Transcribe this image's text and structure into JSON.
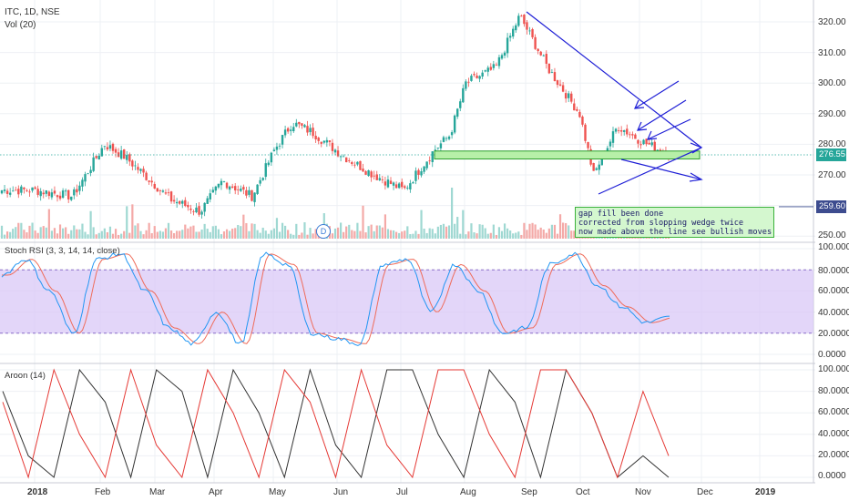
{
  "header": {
    "symbol": "ITC, 1D, NSE",
    "volume": "Vol (20)",
    "stoch_title": "Stoch RSI (3, 3, 14, 14, close)",
    "aroon_title": "Aroon (14)"
  },
  "price_axis": {
    "ticks": [
      "320.00",
      "310.00",
      "300.00",
      "290.00",
      "280.00",
      "270.00",
      "250.00"
    ],
    "last_price": "276.55",
    "support_price": "259.60",
    "last_price_color": "#26a69a",
    "support_color": "#3d4c8f"
  },
  "stoch_axis": {
    "ticks": [
      "100.0000",
      "80.0000",
      "60.0000",
      "40.0000",
      "20.0000",
      "0.0000"
    ]
  },
  "aroon_axis": {
    "ticks": [
      "100.0000",
      "80.0000",
      "60.0000",
      "40.0000",
      "20.0000",
      "0.0000"
    ]
  },
  "time_axis": {
    "labels": [
      "2018",
      "Feb",
      "Mar",
      "Apr",
      "May",
      "Jun",
      "Jul",
      "Aug",
      "Sep",
      "Oct",
      "Nov",
      "Dec",
      "2019"
    ]
  },
  "event_marker": "D",
  "annotation": {
    "lines": [
      "gap  fill been done",
      "corrected from slopping wedge  twice",
      "now made above the line see bullish moves"
    ]
  },
  "colors": {
    "up": "#26a69a",
    "down": "#ef5350",
    "stoch_k": "#2196f3",
    "stoch_d": "#ef6c5a",
    "aroon_up": "#e53935",
    "aroon_down": "#333333",
    "band": "#d9c8f7",
    "drawing": "#1f1fd6",
    "zone": "#b7f0a8"
  },
  "chart_data": [
    {
      "type": "candlestick",
      "title": "ITC, 1D, NSE",
      "ylim": [
        248,
        324
      ],
      "x": [
        "2018",
        "Feb",
        "Mar",
        "Apr",
        "May",
        "Jun",
        "Jul",
        "Aug",
        "Sep",
        "Oct",
        "Nov",
        "Dec",
        "2019"
      ],
      "price_path": [
        {
          "x": "2018-01-01",
          "close": 265
        },
        {
          "x": "2018-01-20",
          "close": 263
        },
        {
          "x": "2018-02-05",
          "close": 280
        },
        {
          "x": "2018-02-15",
          "close": 276
        },
        {
          "x": "2018-02-25",
          "close": 270
        },
        {
          "x": "2018-03-10",
          "close": 262
        },
        {
          "x": "2018-03-25",
          "close": 258
        },
        {
          "x": "2018-04-05",
          "close": 268
        },
        {
          "x": "2018-04-20",
          "close": 263
        },
        {
          "x": "2018-05-01",
          "close": 278
        },
        {
          "x": "2018-05-10",
          "close": 287
        },
        {
          "x": "2018-05-20",
          "close": 284
        },
        {
          "x": "2018-06-05",
          "close": 276
        },
        {
          "x": "2018-06-20",
          "close": 270
        },
        {
          "x": "2018-07-05",
          "close": 265
        },
        {
          "x": "2018-07-20",
          "close": 278
        },
        {
          "x": "2018-07-28",
          "close": 283
        },
        {
          "x": "2018-08-05",
          "close": 300
        },
        {
          "x": "2018-08-20",
          "close": 305
        },
        {
          "x": "2018-09-01",
          "close": 322
        },
        {
          "x": "2018-09-15",
          "close": 305
        },
        {
          "x": "2018-10-01",
          "close": 290
        },
        {
          "x": "2018-10-08",
          "close": 270
        },
        {
          "x": "2018-10-20",
          "close": 286
        },
        {
          "x": "2018-11-01",
          "close": 281
        },
        {
          "x": "2018-11-15",
          "close": 276.55
        }
      ],
      "levels": {
        "last": 276.55,
        "support": 259.6
      }
    },
    {
      "type": "line",
      "title": "Stoch RSI (3, 3, 14, 14, close)",
      "ylim": [
        0,
        100
      ],
      "bands": [
        20,
        80
      ],
      "series": [
        {
          "values": [
            75,
            90,
            60,
            20,
            90,
            95,
            60,
            25,
            10,
            40,
            10,
            95,
            85,
            20,
            15,
            10,
            85,
            90,
            40,
            85,
            60,
            20,
            25,
            85,
            95,
            65,
            45,
            30,
            35
          ]
        }
      ]
    },
    {
      "type": "line",
      "title": "Aroon (14)",
      "ylim": [
        0,
        100
      ],
      "series": [
        {
          "values": [
            70,
            0,
            100,
            40,
            0,
            100,
            30,
            0,
            100,
            60,
            0,
            100,
            70,
            0,
            100,
            30,
            0,
            100,
            100,
            40,
            0,
            100,
            100,
            60,
            0,
            80,
            20
          ]
        },
        {
          "values": [
            80,
            20,
            0,
            100,
            70,
            0,
            100,
            80,
            0,
            100,
            60,
            0,
            100,
            30,
            0,
            100,
            100,
            40,
            0,
            100,
            70,
            0,
            100,
            60,
            0,
            20,
            0
          ]
        }
      ]
    }
  ]
}
